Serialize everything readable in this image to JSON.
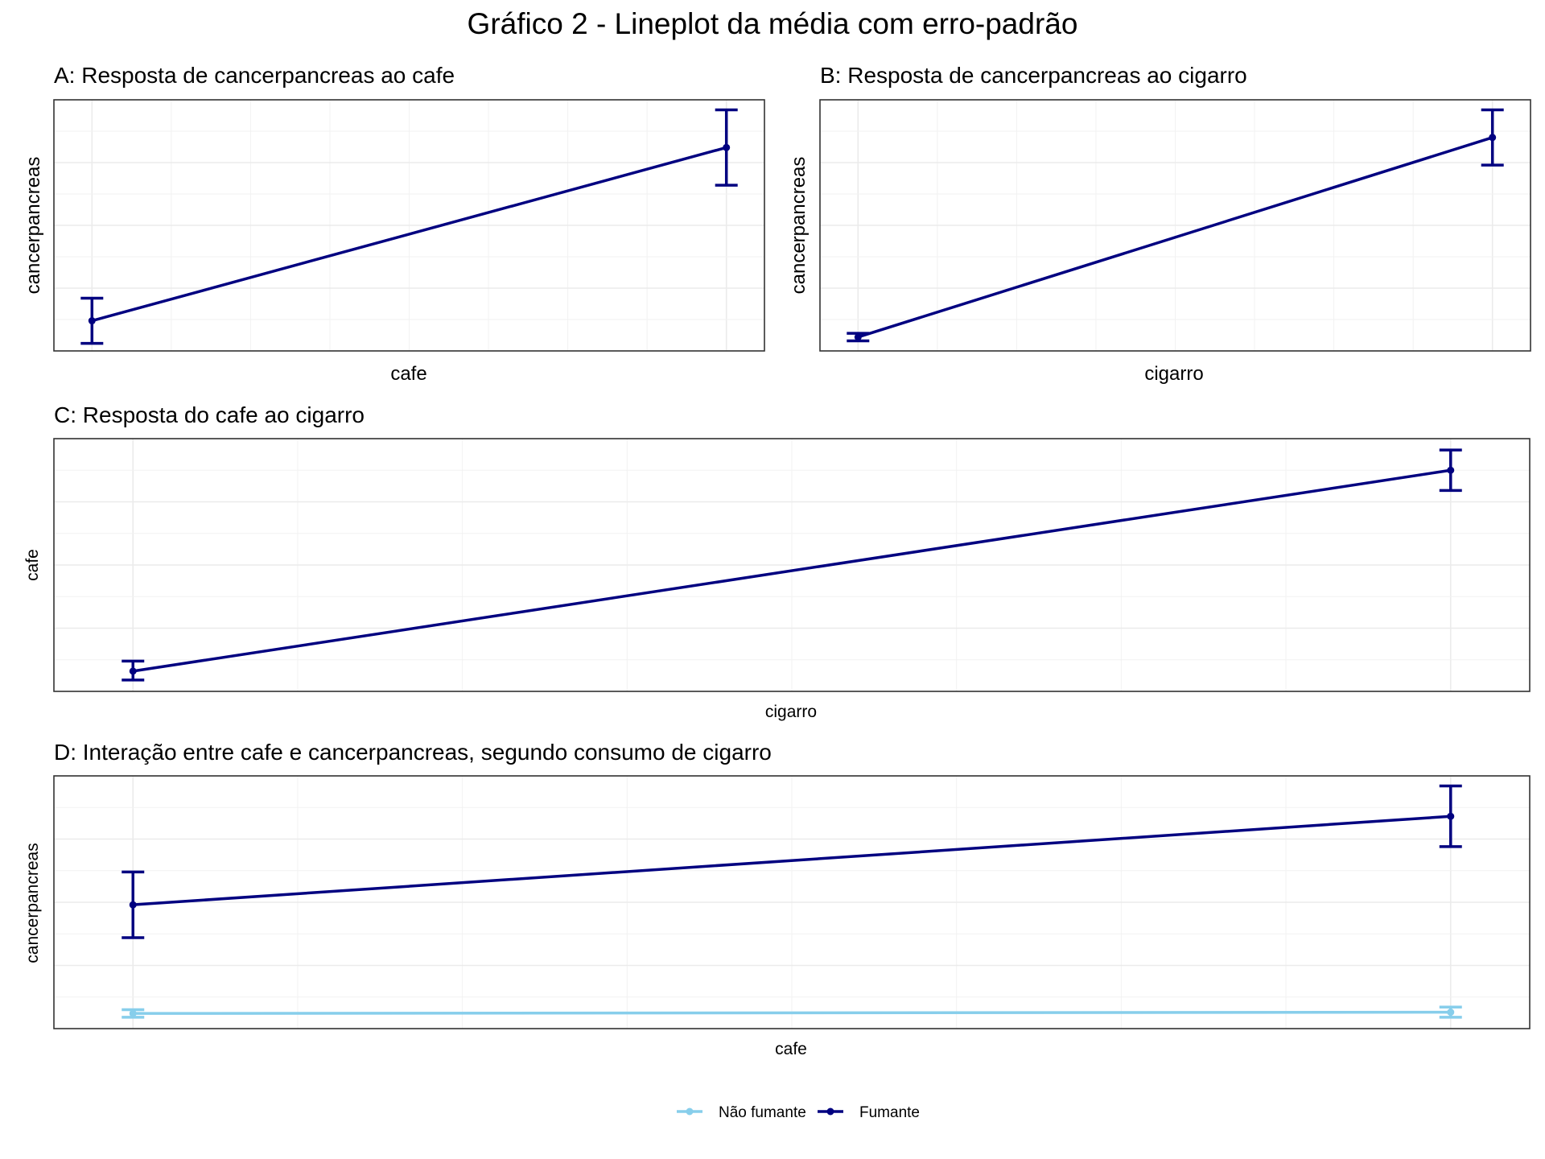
{
  "figure_title": "Gráfico 2 - Lineplot da média com erro-padrão",
  "colors": {
    "fumante": "#000080",
    "nao_fumante": "#87CEEB",
    "grid": "#ebebeb",
    "frame": "#333333"
  },
  "legend": {
    "position": "bottom",
    "items": [
      "Não fumante",
      "Fumante"
    ]
  },
  "chart_data": [
    {
      "id": "A",
      "type": "line",
      "title": "A: Resposta de cancerpancreas ao cafe",
      "xlabel": "cafe",
      "ylabel": "cancerpancreas",
      "grid": true,
      "x": [
        "0",
        "1"
      ],
      "xlim": [
        -0.06,
        1.06
      ],
      "ylim": [
        0.0,
        1.0
      ],
      "series": [
        {
          "color": "#000080",
          "points": [
            {
              "x": 0,
              "y": 0.12,
              "lo": 0.03,
              "hi": 0.21
            },
            {
              "x": 1,
              "y": 0.81,
              "lo": 0.66,
              "hi": 0.96
            }
          ]
        }
      ]
    },
    {
      "id": "B",
      "type": "line",
      "title": "B: Resposta de cancerpancreas ao cigarro",
      "xlabel": "cigarro",
      "ylabel": "cancerpancreas",
      "grid": true,
      "x": [
        "0",
        "1"
      ],
      "xlim": [
        -0.06,
        1.06
      ],
      "ylim": [
        0.0,
        1.0
      ],
      "series": [
        {
          "color": "#000080",
          "points": [
            {
              "x": 0,
              "y": 0.055,
              "lo": 0.04,
              "hi": 0.07
            },
            {
              "x": 1,
              "y": 0.85,
              "lo": 0.74,
              "hi": 0.96
            }
          ]
        }
      ]
    },
    {
      "id": "C",
      "type": "line",
      "title": "C: Resposta do cafe ao cigarro",
      "xlabel": "cigarro",
      "ylabel": "cafe",
      "grid": true,
      "x": [
        "0",
        "1"
      ],
      "xlim": [
        -0.06,
        1.06
      ],
      "ylim": [
        0.0,
        1.0
      ],
      "series": [
        {
          "color": "#000080",
          "points": [
            {
              "x": 0,
              "y": 0.08,
              "lo": 0.045,
              "hi": 0.12
            },
            {
              "x": 1,
              "y": 0.875,
              "lo": 0.795,
              "hi": 0.955
            }
          ]
        }
      ]
    },
    {
      "id": "D",
      "type": "line",
      "title": "D: Interação entre cafe e cancerpancreas, segundo consumo de cigarro",
      "xlabel": "cafe",
      "ylabel": "cancerpancreas",
      "grid": true,
      "x": [
        "0",
        "1"
      ],
      "xlim": [
        -0.06,
        1.06
      ],
      "ylim": [
        0.0,
        1.0
      ],
      "series": [
        {
          "name": "Não fumante",
          "color": "#87CEEB",
          "points": [
            {
              "x": 0,
              "y": 0.06,
              "lo": 0.045,
              "hi": 0.075
            },
            {
              "x": 1,
              "y": 0.065,
              "lo": 0.045,
              "hi": 0.085
            }
          ]
        },
        {
          "name": "Fumante",
          "color": "#000080",
          "points": [
            {
              "x": 0,
              "y": 0.49,
              "lo": 0.36,
              "hi": 0.62
            },
            {
              "x": 1,
              "y": 0.84,
              "lo": 0.72,
              "hi": 0.96
            }
          ]
        }
      ]
    }
  ]
}
